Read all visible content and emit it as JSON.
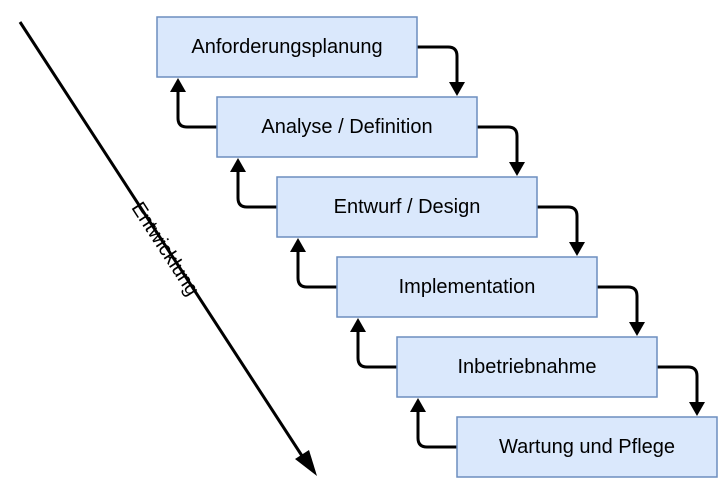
{
  "diagram": {
    "axis_label": "Entwicklung",
    "stages": [
      {
        "label": "Anforderungsplanung"
      },
      {
        "label": "Analyse / Definition"
      },
      {
        "label": "Entwurf / Design"
      },
      {
        "label": "Implementation"
      },
      {
        "label": "Inbetriebnahme"
      },
      {
        "label": "Wartung und Pflege"
      }
    ],
    "colors": {
      "box_fill": "#dae8fc",
      "box_stroke": "#6c8ebf",
      "line": "#000000"
    }
  }
}
